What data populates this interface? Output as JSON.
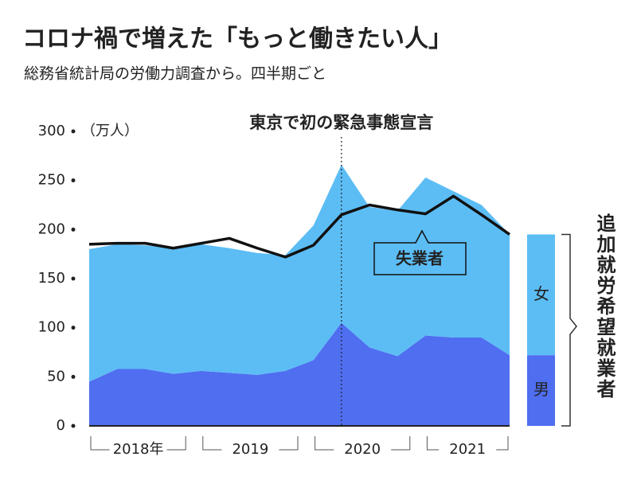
{
  "chart_data": {
    "type": "stacked-area-line",
    "title": "コロナ禍で増えた「もっと働きたい人」",
    "subtitle": "総務省統計局の労働力調査から。四半期ごと",
    "y_unit": "（万人）",
    "annotation": "東京で初の緊急事態宣言",
    "annotation_index": 9,
    "area_label": "追加就労希望就業者",
    "categories": [
      null,
      null,
      null,
      null,
      null,
      null,
      null,
      null,
      null,
      null,
      null,
      null,
      null,
      null,
      null,
      null
    ],
    "year_labels": [
      "2018年",
      "2019",
      "2020",
      "2021"
    ],
    "series": [
      {
        "name": "男",
        "color": "#4f6ef0",
        "kind": "area",
        "values": [
          45,
          58,
          58,
          53,
          56,
          54,
          52,
          56,
          67,
          105,
          80,
          71,
          92,
          90,
          90,
          72
        ]
      },
      {
        "name": "女",
        "color": "#5cbdf5",
        "kind": "area",
        "values": [
          135,
          127,
          126,
          128,
          129,
          127,
          124,
          118,
          137,
          161,
          143,
          148,
          161,
          149,
          135,
          123
        ]
      },
      {
        "name": "失業者",
        "color": "#111111",
        "kind": "line",
        "values": [
          185,
          186,
          186,
          181,
          186,
          191,
          181,
          172,
          184,
          215,
          225,
          220,
          216,
          234,
          215,
          195
        ]
      }
    ],
    "ylim": [
      0,
      300
    ],
    "yticks": [
      0,
      50,
      100,
      150,
      200,
      250,
      300
    ]
  }
}
